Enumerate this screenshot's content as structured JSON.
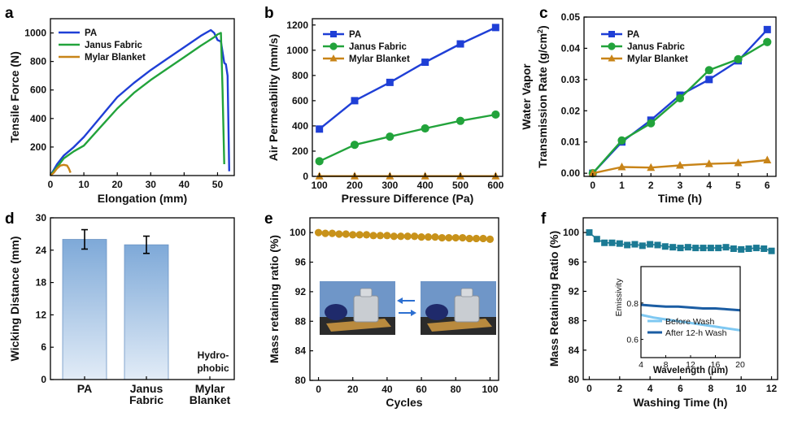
{
  "colors": {
    "pa": "#1f3fd6",
    "janus": "#22a33b",
    "mylar": "#c88418",
    "mass_e": "#c8921a",
    "teal": "#1b7a94",
    "bar_top": "#7ea9d8",
    "bar_bottom": "#dbe7f5",
    "insert_before": "#7ec8f2",
    "insert_after": "#1b5da3"
  },
  "chart_data": [
    {
      "panel": "a",
      "type": "line",
      "xlabel": "Elongation (mm)",
      "ylabel": "Tensile Force (N)",
      "xlim": [
        0,
        55
      ],
      "ylim": [
        0,
        1100
      ],
      "xticks": [
        0,
        10,
        20,
        30,
        40,
        50
      ],
      "yticks": [
        200,
        400,
        600,
        800,
        1000
      ],
      "legend": "top-left",
      "series": [
        {
          "name": "PA",
          "color_key": "pa",
          "x": [
            0,
            2,
            4,
            7,
            10,
            15,
            20,
            25,
            30,
            35,
            40,
            45,
            48,
            49,
            50,
            51,
            52,
            52.5,
            53,
            53.3,
            53.5
          ],
          "y": [
            0,
            80,
            140,
            200,
            270,
            410,
            550,
            650,
            740,
            820,
            900,
            980,
            1020,
            1000,
            950,
            940,
            790,
            780,
            700,
            300,
            30
          ]
        },
        {
          "name": "Janus Fabric",
          "color_key": "janus",
          "x": [
            0,
            2,
            4,
            7,
            10,
            15,
            20,
            25,
            30,
            35,
            40,
            45,
            49,
            50,
            51,
            51.5,
            52
          ],
          "y": [
            0,
            60,
            120,
            170,
            210,
            340,
            470,
            580,
            670,
            750,
            830,
            910,
            970,
            990,
            1000,
            600,
            80
          ]
        },
        {
          "name": "Mylar Blanket",
          "color_key": "mylar",
          "x": [
            0,
            1,
            2,
            3,
            4,
            5,
            5.5,
            6
          ],
          "y": [
            0,
            20,
            50,
            70,
            75,
            70,
            50,
            20
          ]
        }
      ]
    },
    {
      "panel": "b",
      "type": "line",
      "xlabel": "Pressure Difference (Pa)",
      "ylabel": "Air Permeability (mm/s)",
      "xlim": [
        80,
        620
      ],
      "ylim": [
        0,
        1250
      ],
      "xticks": [
        100,
        200,
        300,
        400,
        500,
        600
      ],
      "yticks": [
        0,
        200,
        400,
        600,
        800,
        1000,
        1200
      ],
      "legend": "top-left",
      "x": [
        100,
        200,
        300,
        400,
        500,
        600
      ],
      "series": [
        {
          "name": "PA",
          "color_key": "pa",
          "marker": "square",
          "values": [
            375,
            600,
            745,
            905,
            1050,
            1180
          ]
        },
        {
          "name": "Janus Fabric",
          "color_key": "janus",
          "marker": "circle",
          "values": [
            120,
            250,
            315,
            380,
            440,
            490
          ]
        },
        {
          "name": "Mylar Blanket",
          "color_key": "mylar",
          "marker": "triangle",
          "values": [
            2,
            2,
            2,
            2,
            2,
            2
          ]
        }
      ]
    },
    {
      "panel": "c",
      "type": "line",
      "xlabel": "Time (h)",
      "ylabel_line1": "Water Vapor",
      "ylabel_line2": "Transmission Rate (g/cm",
      "ylabel_sup": "2",
      "ylabel_end": ")",
      "xlim": [
        -0.3,
        6.3
      ],
      "ylim": [
        -0.001,
        0.05
      ],
      "xticks": [
        0,
        1,
        2,
        3,
        4,
        5,
        6
      ],
      "yticks": [
        0.0,
        0.01,
        0.02,
        0.03,
        0.04,
        0.05
      ],
      "ytick_labels": [
        "0.00",
        "0.01",
        "0.02",
        "0.03",
        "0.04",
        "0.05"
      ],
      "legend": "top-left",
      "x": [
        0,
        1,
        2,
        3,
        4,
        5,
        6
      ],
      "series": [
        {
          "name": "PA",
          "color_key": "pa",
          "marker": "square",
          "values": [
            0.0,
            0.01,
            0.017,
            0.025,
            0.03,
            0.036,
            0.046
          ]
        },
        {
          "name": "Janus  Fabric",
          "color_key": "janus",
          "marker": "circle",
          "values": [
            0.0,
            0.0105,
            0.016,
            0.024,
            0.033,
            0.0365,
            0.042
          ]
        },
        {
          "name": "Mylar Blanket",
          "color_key": "mylar",
          "marker": "triangle",
          "values": [
            0.0,
            0.002,
            0.0018,
            0.0025,
            0.003,
            0.0033,
            0.0042
          ]
        }
      ]
    },
    {
      "panel": "d",
      "type": "bar",
      "ylabel": "Wicking Distance (mm)",
      "ylim": [
        0,
        30
      ],
      "yticks": [
        0,
        6,
        12,
        18,
        24,
        30
      ],
      "categories": [
        [
          "PA"
        ],
        [
          "Janus",
          "Fabric"
        ],
        [
          "Mylar",
          "Blanket"
        ]
      ],
      "values": [
        26.0,
        25.0,
        null
      ],
      "errors": [
        1.8,
        1.6,
        null
      ],
      "note": [
        "Hydro-",
        "phobic"
      ]
    },
    {
      "panel": "e",
      "type": "scatter",
      "xlabel": "Cycles",
      "ylabel": "Mass retaining ratio (%)",
      "xlim": [
        -5,
        105
      ],
      "ylim": [
        80,
        102
      ],
      "xticks": [
        0,
        20,
        40,
        60,
        80,
        100
      ],
      "yticks": [
        80,
        84,
        88,
        92,
        96,
        100
      ],
      "x": [
        0,
        4,
        8,
        12,
        16,
        20,
        24,
        28,
        32,
        36,
        40,
        44,
        48,
        52,
        56,
        60,
        64,
        68,
        72,
        76,
        80,
        84,
        88,
        92,
        96,
        100
      ],
      "values": [
        100.0,
        99.9,
        99.9,
        99.8,
        99.8,
        99.7,
        99.7,
        99.7,
        99.6,
        99.6,
        99.6,
        99.5,
        99.5,
        99.5,
        99.5,
        99.4,
        99.4,
        99.4,
        99.3,
        99.3,
        99.3,
        99.3,
        99.2,
        99.2,
        99.2,
        99.1
      ]
    },
    {
      "panel": "f",
      "type": "line",
      "xlabel": "Washing Time (h)",
      "ylabel": "Mass Retaining Ratio (%)",
      "xlim": [
        -0.4,
        12.4
      ],
      "ylim": [
        80,
        102
      ],
      "xticks": [
        0,
        2,
        4,
        6,
        8,
        10,
        12
      ],
      "yticks": [
        80,
        84,
        88,
        92,
        96,
        100
      ],
      "x": [
        0,
        0.5,
        1,
        1.5,
        2,
        2.5,
        3,
        3.5,
        4,
        4.5,
        5,
        5.5,
        6,
        6.5,
        7,
        7.5,
        8,
        8.5,
        9,
        9.5,
        10,
        10.5,
        11,
        11.5,
        12
      ],
      "values": [
        100.0,
        99.1,
        98.6,
        98.6,
        98.5,
        98.3,
        98.4,
        98.2,
        98.4,
        98.3,
        98.1,
        98.0,
        97.9,
        98.0,
        97.9,
        97.9,
        97.9,
        97.9,
        98.0,
        97.8,
        97.7,
        97.8,
        97.9,
        97.8,
        97.5
      ],
      "inset": {
        "xlabel": "Wavelength (",
        "xlabel_mu": "μ",
        "xlabel_end": "m)",
        "ylabel": "Emissivity",
        "xlim": [
          4,
          20
        ],
        "ylim": [
          0.5,
          1.0
        ],
        "xticks": [
          4,
          8,
          12,
          16,
          20
        ],
        "yticks": [
          0.6,
          0.8
        ],
        "x": [
          4,
          6,
          8,
          10,
          12,
          14,
          16,
          18,
          20
        ],
        "series": [
          {
            "name": "Before Wash",
            "color_key": "insert_before",
            "values": [
              0.735,
              0.72,
              0.71,
              0.7,
              0.69,
              0.68,
              0.67,
              0.66,
              0.65
            ]
          },
          {
            "name": "After 12-h Wash",
            "color_key": "insert_after",
            "values": [
              0.79,
              0.785,
              0.78,
              0.78,
              0.775,
              0.77,
              0.77,
              0.765,
              0.76
            ]
          }
        ]
      }
    }
  ],
  "panel_labels": [
    "a",
    "b",
    "c",
    "d",
    "e",
    "f"
  ]
}
